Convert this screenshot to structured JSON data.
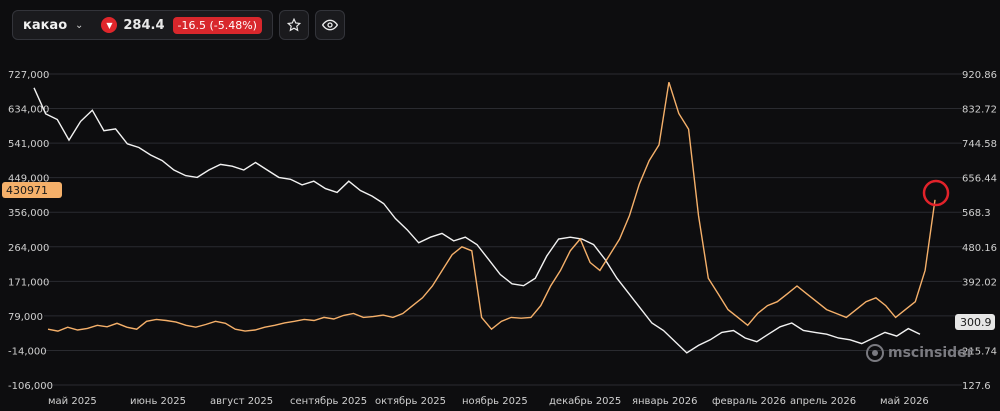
{
  "toolbar": {
    "symbol": "какао",
    "price": "284.4",
    "change": "-16.5 (-5.48%)"
  },
  "icons": {
    "dropdown": "chevron-down-icon",
    "trend": "down-triangle-icon",
    "favorite": "star-icon",
    "watch": "eye-icon"
  },
  "watermark": {
    "text": "mscinsider"
  },
  "colors": {
    "white_series": "#f2f2f2",
    "orange_series": "#f5b06a",
    "highlight_circle": "#e1222a"
  },
  "chart_data": {
    "type": "line",
    "left_axis": {
      "ticks": [
        "727,000",
        "634,000",
        "541,000",
        "449,000",
        "356,000",
        "264,000",
        "171,000",
        "79,000",
        "-14,000",
        "-106,000"
      ],
      "range": [
        -106000,
        727000
      ]
    },
    "right_axis": {
      "ticks": [
        "920.86",
        "832.72",
        "744.58",
        "656.44",
        "568.3",
        "480.16",
        "392.02",
        "215.74",
        "127.6"
      ],
      "range": [
        127.6,
        920.86
      ]
    },
    "x_ticks": [
      "май 2025",
      "июнь 2025",
      "август 2025",
      "сентябрь 2025",
      "октябрь 2025",
      "ноябрь 2025",
      "декабрь 2025",
      "январь 2026",
      "февраль 2026",
      "апрель 2026",
      "май 2026"
    ],
    "left_marker": "430971",
    "right_marker": "300.9",
    "grid": true,
    "series": [
      {
        "axis": "left",
        "values": [
          690000,
          620000,
          605000,
          550000,
          600000,
          630000,
          575000,
          580000,
          540000,
          530000,
          510000,
          495000,
          470000,
          455000,
          450000,
          470000,
          485000,
          480000,
          470000,
          490000,
          470000,
          450000,
          445000,
          430000,
          440000,
          420000,
          410000,
          440000,
          415000,
          400000,
          380000,
          340000,
          310000,
          275000,
          290000,
          300000,
          280000,
          290000,
          270000,
          230000,
          190000,
          165000,
          160000,
          180000,
          240000,
          285000,
          290000,
          285000,
          270000,
          230000,
          180000,
          140000,
          100000,
          60000,
          40000,
          10000,
          -20000,
          0,
          15000,
          35000,
          40000,
          20000,
          10000,
          30000,
          50000,
          60000,
          40000,
          35000,
          30000,
          20000,
          15000,
          5000,
          20000,
          35000,
          25000,
          45000,
          30000
        ]
      },
      {
        "axis": "right",
        "values": [
          270,
          265,
          275,
          268,
          272,
          280,
          276,
          285,
          275,
          270,
          290,
          295,
          292,
          288,
          280,
          275,
          282,
          290,
          285,
          270,
          265,
          268,
          275,
          280,
          286,
          290,
          295,
          292,
          300,
          296,
          305,
          310,
          300,
          302,
          306,
          300,
          310,
          330,
          350,
          380,
          420,
          460,
          480,
          470,
          300,
          270,
          290,
          300,
          298,
          300,
          330,
          380,
          420,
          470,
          500,
          440,
          420,
          460,
          500,
          560,
          640,
          700,
          740,
          900,
          820,
          780,
          560,
          400,
          360,
          320,
          300,
          280,
          310,
          330,
          340,
          360,
          380,
          360,
          340,
          320,
          310,
          300,
          320,
          340,
          350,
          330,
          300,
          320,
          340,
          420,
          600
        ]
      }
    ]
  }
}
